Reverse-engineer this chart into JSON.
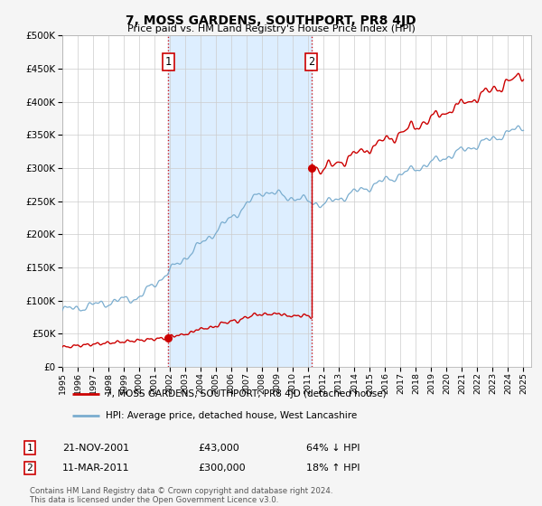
{
  "title": "7, MOSS GARDENS, SOUTHPORT, PR8 4JD",
  "subtitle": "Price paid vs. HM Land Registry's House Price Index (HPI)",
  "property_label": "7, MOSS GARDENS, SOUTHPORT, PR8 4JD (detached house)",
  "hpi_label": "HPI: Average price, detached house, West Lancashire",
  "property_color": "#cc0000",
  "hpi_color": "#7aadcf",
  "shaded_color": "#ddeeff",
  "purchase1_date": 2001.9,
  "purchase1_label": "21-NOV-2001",
  "purchase1_price": 43000,
  "purchase1_pct": "64% ↓ HPI",
  "purchase2_date": 2011.2,
  "purchase2_label": "11-MAR-2011",
  "purchase2_price": 300000,
  "purchase2_pct": "18% ↑ HPI",
  "vline_color": "#cc0000",
  "ylim": [
    0,
    500000
  ],
  "yticks": [
    0,
    50000,
    100000,
    150000,
    200000,
    250000,
    300000,
    350000,
    400000,
    450000,
    500000
  ],
  "footnote": "Contains HM Land Registry data © Crown copyright and database right 2024.\nThis data is licensed under the Open Government Licence v3.0.",
  "background_color": "#f5f5f5",
  "plot_bg_color": "#ffffff"
}
